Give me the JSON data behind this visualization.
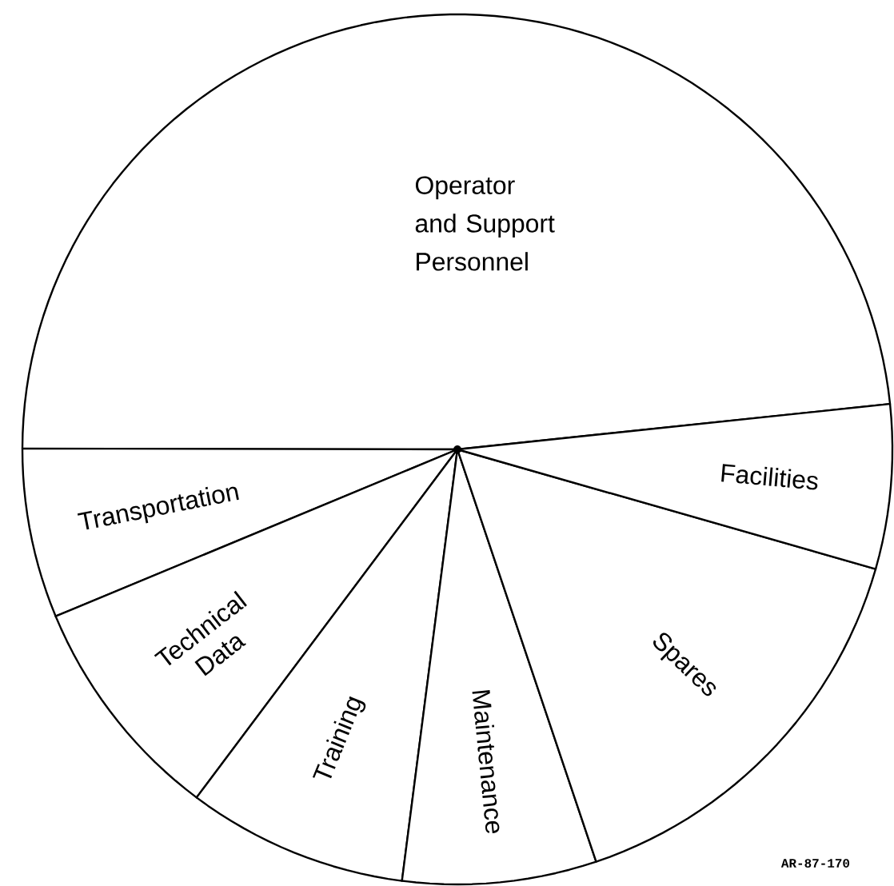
{
  "chart_data": {
    "type": "pie",
    "categories": [
      "Operator and Support Personnel",
      "Transportation",
      "Technical Data",
      "Training",
      "Maintenance",
      "Spares",
      "Facilities"
    ],
    "values": [
      48.3,
      6.3,
      8.5,
      8.2,
      7.2,
      15.4,
      6.1
    ],
    "colors": [
      "#ffffff",
      "#ffffff",
      "#ffffff",
      "#ffffff",
      "#ffffff",
      "#ffffff",
      "#ffffff"
    ],
    "annotations": [
      "AR-87-170"
    ]
  }
}
